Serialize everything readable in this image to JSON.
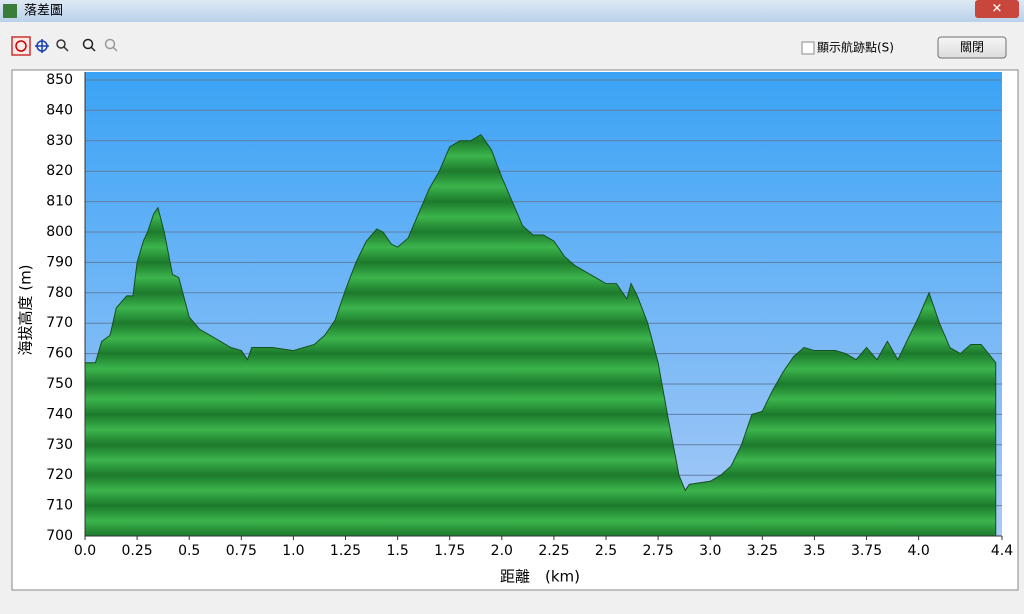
{
  "window": {
    "title": "落差圖"
  },
  "toolbar": {
    "checkbox_label": "顯示航跡點(S)",
    "button": "關閉"
  },
  "chart_data": {
    "type": "area",
    "x_label": "距離　(km)",
    "y_label": "海拔高度 (m)",
    "color": "#1f8a35",
    "grid": true,
    "x": [
      0,
      0.05,
      0.08,
      0.12,
      0.15,
      0.2,
      0.23,
      0.25,
      0.28,
      0.3,
      0.33,
      0.35,
      0.38,
      0.42,
      0.45,
      0.5,
      0.55,
      0.6,
      0.7,
      0.75,
      0.78,
      0.8,
      0.9,
      1.0,
      1.05,
      1.1,
      1.15,
      1.2,
      1.25,
      1.3,
      1.35,
      1.4,
      1.43,
      1.47,
      1.5,
      1.55,
      1.6,
      1.65,
      1.7,
      1.75,
      1.8,
      1.85,
      1.9,
      1.95,
      2.0,
      2.05,
      2.1,
      2.15,
      2.2,
      2.25,
      2.3,
      2.35,
      2.4,
      2.45,
      2.5,
      2.55,
      2.6,
      2.62,
      2.65,
      2.7,
      2.75,
      2.8,
      2.85,
      2.88,
      2.9,
      3.0,
      3.05,
      3.1,
      3.15,
      3.2,
      3.25,
      3.3,
      3.35,
      3.4,
      3.45,
      3.5,
      3.6,
      3.65,
      3.7,
      3.75,
      3.8,
      3.85,
      3.9,
      3.95,
      4.0,
      4.05,
      4.1,
      4.15,
      4.2,
      4.25,
      4.3,
      4.37
    ],
    "values": [
      757,
      757,
      764,
      766,
      775,
      779,
      779,
      790,
      797,
      800,
      806,
      808,
      800,
      786,
      785,
      772,
      768,
      766,
      762,
      761,
      758,
      762,
      762,
      761,
      762,
      763,
      766,
      771,
      781,
      790,
      797,
      801,
      800,
      796,
      795,
      798,
      806,
      814,
      820,
      828,
      830,
      830,
      832,
      827,
      818,
      810,
      802,
      799,
      799,
      797,
      792,
      789,
      787,
      785,
      783,
      783,
      778,
      783,
      779,
      770,
      757,
      738,
      720,
      715,
      717,
      718,
      720,
      723,
      730,
      740,
      741,
      748,
      754,
      759,
      762,
      761,
      761,
      760,
      758,
      762,
      758,
      764,
      758,
      765,
      772,
      780,
      770,
      762,
      760,
      763,
      763,
      757
    ],
    "xlim": [
      0,
      4.4
    ],
    "ylim": [
      700,
      850
    ],
    "xticks": [
      {
        "value": 0,
        "label": "0.0"
      },
      0.25,
      0.5,
      0.75,
      {
        "value": 1,
        "label": "1.0"
      },
      1.25,
      1.5,
      1.75,
      {
        "value": 2,
        "label": "2.0"
      },
      2.25,
      2.5,
      2.75,
      {
        "value": 3,
        "label": "3.0"
      },
      3.25,
      3.5,
      3.75,
      {
        "value": 4,
        "label": "4.0"
      },
      4.4
    ],
    "yticks": [
      700,
      710,
      720,
      730,
      740,
      750,
      760,
      770,
      780,
      790,
      800,
      810,
      820,
      830,
      840,
      850
    ]
  }
}
